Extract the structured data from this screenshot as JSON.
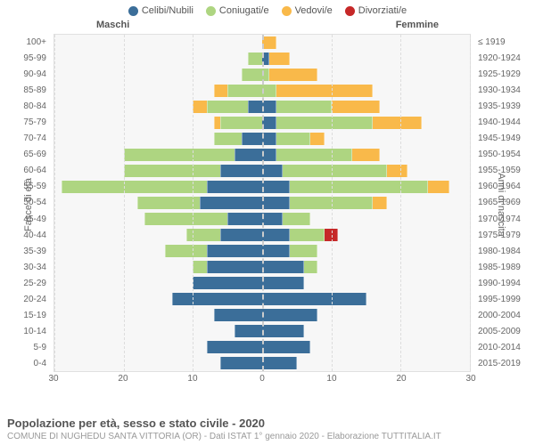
{
  "legend": [
    {
      "label": "Celibi/Nubili",
      "color": "#3b6e99"
    },
    {
      "label": "Coniugati/e",
      "color": "#aed581"
    },
    {
      "label": "Vedovi/e",
      "color": "#f9b94a"
    },
    {
      "label": "Divorziati/e",
      "color": "#c62828"
    }
  ],
  "header_male": "Maschi",
  "header_female": "Femmine",
  "y_left_title": "Fasce di età",
  "y_right_title": "Anni di nascita",
  "title": "Popolazione per età, sesso e stato civile - 2020",
  "subtitle": "COMUNE DI NUGHEDU SANTA VITTORIA (OR) - Dati ISTAT 1° gennaio 2020 - Elaborazione TUTTITALIA.IT",
  "x_max": 30,
  "x_ticks": [
    30,
    20,
    10,
    0,
    10,
    20,
    30
  ],
  "age_bands": [
    "100+",
    "95-99",
    "90-94",
    "85-89",
    "80-84",
    "75-79",
    "70-74",
    "65-69",
    "60-64",
    "55-59",
    "50-54",
    "45-49",
    "40-44",
    "35-39",
    "30-34",
    "25-29",
    "20-24",
    "15-19",
    "10-14",
    "5-9",
    "0-4"
  ],
  "birth_bands": [
    "≤ 1919",
    "1920-1924",
    "1925-1929",
    "1930-1934",
    "1935-1939",
    "1940-1944",
    "1945-1949",
    "1950-1954",
    "1955-1959",
    "1960-1964",
    "1965-1969",
    "1970-1974",
    "1975-1979",
    "1980-1984",
    "1985-1989",
    "1990-1994",
    "1995-1999",
    "2000-2004",
    "2005-2009",
    "2010-2014",
    "2015-2019"
  ],
  "colors": {
    "celibi": "#3b6e99",
    "coniugati": "#aed581",
    "vedovi": "#f9b94a",
    "divorziati": "#c62828",
    "plot_bg": "#f7f7f7",
    "grid": "#dddddd",
    "center": "#cccccc"
  },
  "rows": [
    {
      "m": {
        "cel": 0,
        "con": 0,
        "ved": 0,
        "div": 0
      },
      "f": {
        "cel": 0,
        "con": 0,
        "ved": 2,
        "div": 0
      }
    },
    {
      "m": {
        "cel": 0,
        "con": 2,
        "ved": 0,
        "div": 0
      },
      "f": {
        "cel": 1,
        "con": 0,
        "ved": 3,
        "div": 0
      }
    },
    {
      "m": {
        "cel": 0,
        "con": 3,
        "ved": 0,
        "div": 0
      },
      "f": {
        "cel": 0,
        "con": 1,
        "ved": 7,
        "div": 0
      }
    },
    {
      "m": {
        "cel": 0,
        "con": 5,
        "ved": 2,
        "div": 0
      },
      "f": {
        "cel": 0,
        "con": 2,
        "ved": 14,
        "div": 0
      }
    },
    {
      "m": {
        "cel": 2,
        "con": 6,
        "ved": 2,
        "div": 0
      },
      "f": {
        "cel": 2,
        "con": 8,
        "ved": 7,
        "div": 0
      }
    },
    {
      "m": {
        "cel": 0,
        "con": 6,
        "ved": 1,
        "div": 0
      },
      "f": {
        "cel": 2,
        "con": 14,
        "ved": 7,
        "div": 0
      }
    },
    {
      "m": {
        "cel": 3,
        "con": 4,
        "ved": 0,
        "div": 0
      },
      "f": {
        "cel": 2,
        "con": 5,
        "ved": 2,
        "div": 0
      }
    },
    {
      "m": {
        "cel": 4,
        "con": 16,
        "ved": 0,
        "div": 0
      },
      "f": {
        "cel": 2,
        "con": 11,
        "ved": 4,
        "div": 0
      }
    },
    {
      "m": {
        "cel": 6,
        "con": 14,
        "ved": 0,
        "div": 0
      },
      "f": {
        "cel": 3,
        "con": 15,
        "ved": 3,
        "div": 0
      }
    },
    {
      "m": {
        "cel": 8,
        "con": 21,
        "ved": 0,
        "div": 0
      },
      "f": {
        "cel": 4,
        "con": 20,
        "ved": 3,
        "div": 0
      }
    },
    {
      "m": {
        "cel": 9,
        "con": 9,
        "ved": 0,
        "div": 0
      },
      "f": {
        "cel": 4,
        "con": 12,
        "ved": 2,
        "div": 0
      }
    },
    {
      "m": {
        "cel": 5,
        "con": 12,
        "ved": 0,
        "div": 0
      },
      "f": {
        "cel": 3,
        "con": 4,
        "ved": 0,
        "div": 0
      }
    },
    {
      "m": {
        "cel": 6,
        "con": 5,
        "ved": 0,
        "div": 0
      },
      "f": {
        "cel": 4,
        "con": 5,
        "ved": 0,
        "div": 2
      }
    },
    {
      "m": {
        "cel": 8,
        "con": 6,
        "ved": 0,
        "div": 0
      },
      "f": {
        "cel": 4,
        "con": 4,
        "ved": 0,
        "div": 0
      }
    },
    {
      "m": {
        "cel": 8,
        "con": 2,
        "ved": 0,
        "div": 0
      },
      "f": {
        "cel": 6,
        "con": 2,
        "ved": 0,
        "div": 0
      }
    },
    {
      "m": {
        "cel": 10,
        "con": 0,
        "ved": 0,
        "div": 0
      },
      "f": {
        "cel": 6,
        "con": 0,
        "ved": 0,
        "div": 0
      }
    },
    {
      "m": {
        "cel": 13,
        "con": 0,
        "ved": 0,
        "div": 0
      },
      "f": {
        "cel": 15,
        "con": 0,
        "ved": 0,
        "div": 0
      }
    },
    {
      "m": {
        "cel": 7,
        "con": 0,
        "ved": 0,
        "div": 0
      },
      "f": {
        "cel": 8,
        "con": 0,
        "ved": 0,
        "div": 0
      }
    },
    {
      "m": {
        "cel": 4,
        "con": 0,
        "ved": 0,
        "div": 0
      },
      "f": {
        "cel": 6,
        "con": 0,
        "ved": 0,
        "div": 0
      }
    },
    {
      "m": {
        "cel": 8,
        "con": 0,
        "ved": 0,
        "div": 0
      },
      "f": {
        "cel": 7,
        "con": 0,
        "ved": 0,
        "div": 0
      }
    },
    {
      "m": {
        "cel": 6,
        "con": 0,
        "ved": 0,
        "div": 0
      },
      "f": {
        "cel": 5,
        "con": 0,
        "ved": 0,
        "div": 0
      }
    }
  ]
}
